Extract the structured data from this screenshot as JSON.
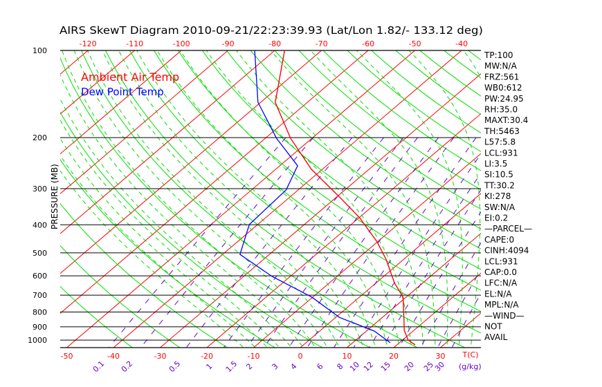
{
  "chart_data": {
    "type": "line",
    "subtype": "skew-t log-p",
    "title": "AIRS SkewT Diagram 2010-09-21/22:23:39.93 (Lat/Lon 1.82/- 133.12 deg)",
    "ylabel": "PRESSURE (MB)",
    "xlabel_bottom": "T(C)",
    "mixing_ratio_label": "(g/kg)",
    "y_ticks": [
      "100",
      "200",
      "300",
      "400",
      "500",
      "600",
      "700",
      "800",
      "900",
      "1000"
    ],
    "y_values": [
      100,
      200,
      300,
      400,
      500,
      600,
      700,
      800,
      900,
      1000
    ],
    "x_ticks_bottom": [
      "-50",
      "-40",
      "-30",
      "-20",
      "-10",
      "0",
      "10",
      "20",
      "30"
    ],
    "x_ticks_top": [
      "-120",
      "-110",
      "-100",
      "-90",
      "-80",
      "-70",
      "-60",
      "-50",
      "-40"
    ],
    "mixing_ratio_ticks": [
      "0.1",
      "0.2",
      "0.5",
      "1",
      "1.5",
      "2",
      "3",
      "4",
      "6",
      "8",
      "10",
      "12",
      "15",
      "20",
      "25",
      "30"
    ],
    "legend": [
      {
        "label": "Ambient Air Temp",
        "color": "#ff0000"
      },
      {
        "label": "Dew Point Temp",
        "color": "#0000ff"
      }
    ],
    "series": [
      {
        "name": "Ambient Air Temp",
        "color": "#ff0000",
        "pressure": [
          100,
          151,
          201,
          257,
          320,
          378,
          458,
          526,
          636,
          710,
          835,
          925,
          1000,
          1039
        ],
        "temperature": [
          -77.9,
          -66.9,
          -54.6,
          -42.4,
          -29.5,
          -19.9,
          -10.1,
          -3.8,
          4.0,
          9.3,
          14.6,
          17.9,
          21.2,
          23.9
        ]
      },
      {
        "name": "Dew Point Temp",
        "color": "#0000ff",
        "pressure": [
          100,
          151,
          201,
          250,
          303,
          399,
          506,
          603,
          710,
          835,
          931,
          1021
        ],
        "temperature": [
          -84.3,
          -70.6,
          -57.6,
          -46.2,
          -42.6,
          -41.8,
          -36.3,
          -23.9,
          -10.3,
          0.8,
          11.7,
          18.0
        ]
      }
    ],
    "ylim": [
      100,
      1070
    ],
    "xlim_bottom": [
      -52,
      39
    ],
    "indices": [
      "TP:100",
      "MW:N/A",
      "FRZ:561",
      "WB0:612",
      "PW:24.95",
      "RH:35.0",
      "MAXT:30.4",
      "TH:5463",
      "L57:5.8",
      "LCL:931",
      "LI:3.5",
      "SI:10.5",
      "TT:30.2",
      "KI:278",
      "SW:N/A",
      "EI:0.2",
      "—PARCEL—",
      "CAPE:0",
      "CINH:4094",
      "LCL:931",
      "CAP:0.0",
      "LFC:N/A",
      "EL:N/A",
      "MPL:N/A",
      "—WIND—",
      "NOT",
      "AVAIL"
    ]
  }
}
